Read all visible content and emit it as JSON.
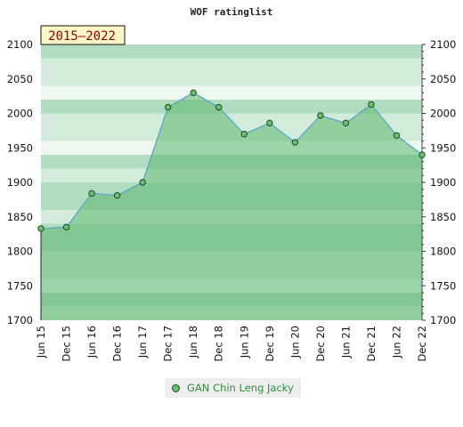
{
  "chart_data": {
    "type": "area",
    "title": "WOF ratinglist",
    "badge": "2015–2022",
    "categories": [
      "Jun 15",
      "Dec 15",
      "Jun 16",
      "Dec 16",
      "Jun 17",
      "Dec 17",
      "Jun 18",
      "Dec 18",
      "Jun 19",
      "Dec 19",
      "Jun 20",
      "Dec 20",
      "Jun 21",
      "Dec 21",
      "Jun 22",
      "Dec 22"
    ],
    "series": [
      {
        "name": "GAN Chin Leng Jacky",
        "values": [
          1833,
          1835,
          1884,
          1881,
          1900,
          2009,
          2030,
          2009,
          1970,
          1986,
          1958,
          1997,
          1986,
          2013,
          1968,
          1940
        ]
      }
    ],
    "ylim": [
      1700,
      2100
    ],
    "yticks": [
      1700,
      1750,
      1800,
      1850,
      1900,
      1950,
      2000,
      2050,
      2100
    ],
    "y_axis_both_sides": true,
    "legend_position": "bottom",
    "colors": {
      "line": "#5aa7c7",
      "fill": "#5cb870",
      "marker": "#6bbf73",
      "marker_edge": "#1d4d21",
      "band_dark": "#b2dcc0",
      "band_light": "#d2ebda",
      "band_pale": "#eef7f0"
    }
  }
}
